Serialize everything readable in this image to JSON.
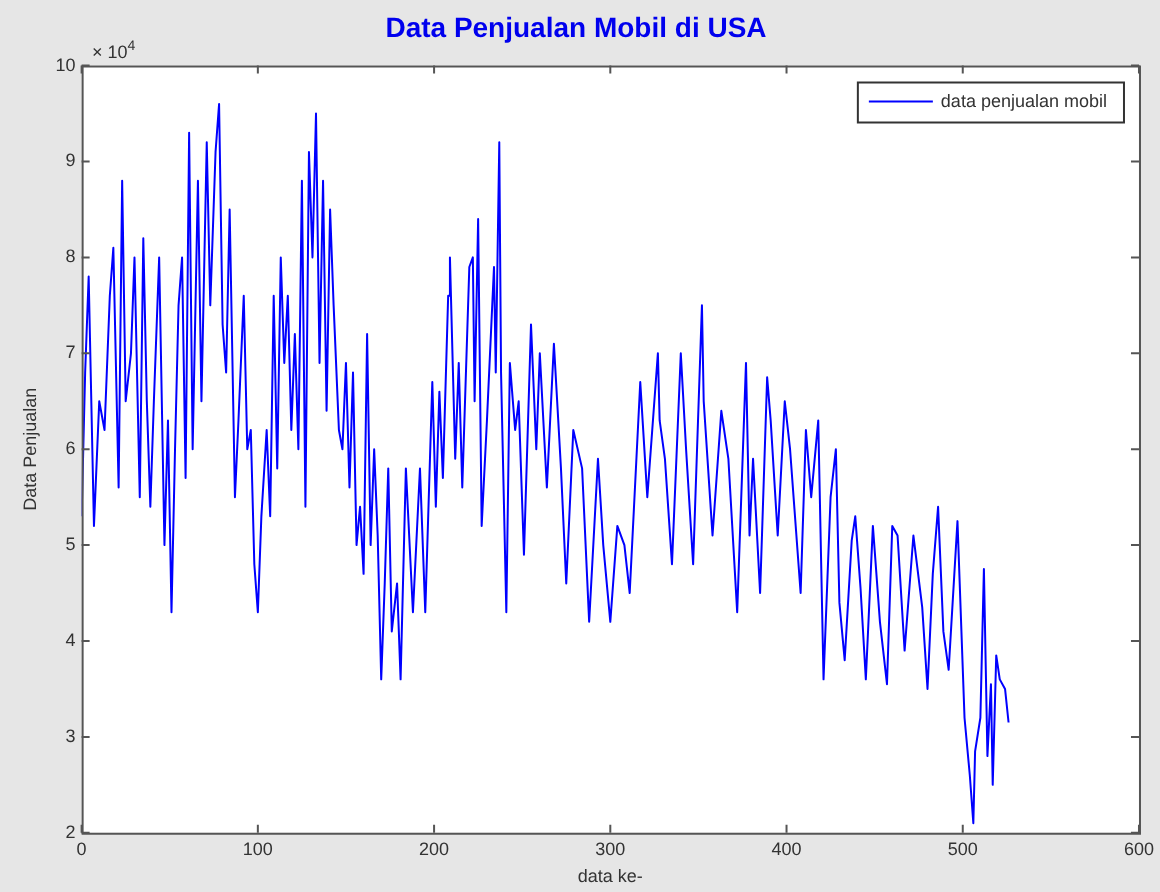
{
  "chart_data": {
    "type": "line",
    "title": "Data Penjualan Mobil di USA",
    "xlabel": "data ke-",
    "ylabel": "Data Penjualan",
    "annotations": [
      "× 10$^{4}$"
    ],
    "xlim": [
      0,
      600
    ],
    "xticks": [
      0,
      100,
      200,
      300,
      400,
      500,
      600
    ],
    "ylim": [
      2,
      10
    ],
    "yticks": [
      2,
      3,
      4,
      5,
      6,
      7,
      8,
      9,
      10
    ],
    "grid": false,
    "legend": "top right",
    "marker": "none",
    "line_style": "solid",
    "series": [
      {
        "name": "data penjualan mobil",
        "color": "#0000ff",
        "x": [
          0,
          2,
          4,
          7,
          10,
          13,
          16,
          18,
          21,
          23,
          25,
          28,
          30,
          33,
          35,
          37,
          39,
          41,
          44,
          47,
          49,
          51,
          53,
          55,
          57,
          59,
          61,
          63,
          66,
          68,
          71,
          73,
          76,
          78,
          80,
          82,
          84,
          87,
          89,
          92,
          94,
          96,
          98,
          100,
          102,
          105,
          107,
          109,
          111,
          113,
          115,
          117,
          119,
          121,
          123,
          125,
          127,
          129,
          131,
          133,
          135,
          137,
          139,
          141,
          143,
          146,
          148,
          150,
          152,
          154,
          156,
          158,
          160,
          162,
          164,
          166,
          168,
          170,
          172,
          174,
          176,
          179,
          181,
          184,
          188,
          192,
          195,
          199,
          201,
          203,
          205,
          208,
          209,
          212,
          214,
          216,
          220,
          222,
          223,
          225,
          227,
          230,
          234,
          235,
          237,
          238,
          241,
          243,
          246,
          248,
          251,
          255,
          258,
          260,
          264,
          268,
          272,
          275,
          279,
          284,
          288,
          293,
          296,
          300,
          304,
          308,
          311,
          317,
          321,
          327,
          328,
          331,
          335,
          340,
          343,
          347,
          352,
          353,
          358,
          363,
          367,
          372,
          377,
          379,
          381,
          385,
          389,
          391,
          395,
          399,
          402,
          408,
          411,
          414,
          418,
          421,
          425,
          428,
          430,
          433,
          437,
          439,
          442,
          445,
          449,
          453,
          457,
          460,
          463,
          467,
          472,
          477,
          480,
          483,
          486,
          489,
          492,
          497,
          501,
          504,
          506,
          507,
          510,
          512,
          514,
          516,
          517,
          519,
          521,
          524,
          526
        ],
        "values": [
          5.3,
          6.8,
          7.8,
          5.2,
          6.5,
          6.2,
          7.6,
          8.1,
          5.6,
          8.8,
          6.5,
          7.0,
          8.0,
          5.5,
          8.2,
          6.5,
          5.4,
          6.5,
          8.0,
          5.0,
          6.3,
          4.3,
          6.0,
          7.5,
          8.0,
          5.7,
          9.3,
          6.0,
          8.8,
          6.5,
          9.2,
          7.5,
          9.1,
          9.6,
          7.3,
          6.8,
          8.5,
          5.5,
          6.3,
          7.6,
          6.0,
          6.2,
          4.8,
          4.3,
          5.3,
          6.2,
          5.3,
          7.6,
          5.8,
          8.0,
          6.9,
          7.6,
          6.2,
          7.2,
          6.0,
          8.8,
          5.4,
          9.1,
          8.0,
          9.5,
          6.9,
          8.8,
          6.4,
          8.5,
          7.5,
          6.2,
          6.0,
          6.9,
          5.6,
          6.8,
          5.0,
          5.4,
          4.7,
          7.2,
          5.0,
          6.0,
          5.1,
          3.6,
          4.6,
          5.8,
          4.1,
          4.6,
          3.6,
          5.8,
          4.3,
          5.8,
          4.3,
          6.7,
          5.4,
          6.6,
          5.7,
          7.6,
          8.0,
          5.9,
          6.9,
          5.6,
          7.9,
          8.0,
          6.5,
          8.4,
          5.2,
          6.3,
          7.9,
          6.8,
          9.2,
          6.8,
          4.3,
          6.9,
          6.2,
          6.5,
          4.9,
          7.3,
          6.0,
          7.0,
          5.6,
          7.1,
          5.8,
          4.6,
          6.2,
          5.8,
          4.2,
          5.9,
          5.0,
          4.2,
          5.2,
          5.0,
          4.5,
          6.7,
          5.5,
          7.0,
          6.3,
          5.9,
          4.8,
          7.0,
          6.0,
          4.8,
          7.5,
          6.5,
          5.1,
          6.4,
          5.9,
          4.3,
          6.9,
          5.1,
          5.9,
          4.5,
          6.75,
          6.3,
          5.1,
          6.5,
          6.0,
          4.5,
          6.2,
          5.5,
          6.3,
          3.6,
          5.5,
          6.0,
          4.4,
          3.8,
          5.05,
          5.3,
          4.55,
          3.6,
          5.2,
          4.2,
          3.55,
          5.2,
          5.1,
          3.9,
          5.1,
          4.35,
          3.5,
          4.7,
          5.4,
          4.1,
          3.7,
          5.25,
          3.2,
          2.6,
          2.1,
          2.85,
          3.2,
          4.75,
          2.8,
          3.55,
          2.5,
          3.85,
          3.6,
          3.5,
          3.15
        ]
      }
    ]
  }
}
